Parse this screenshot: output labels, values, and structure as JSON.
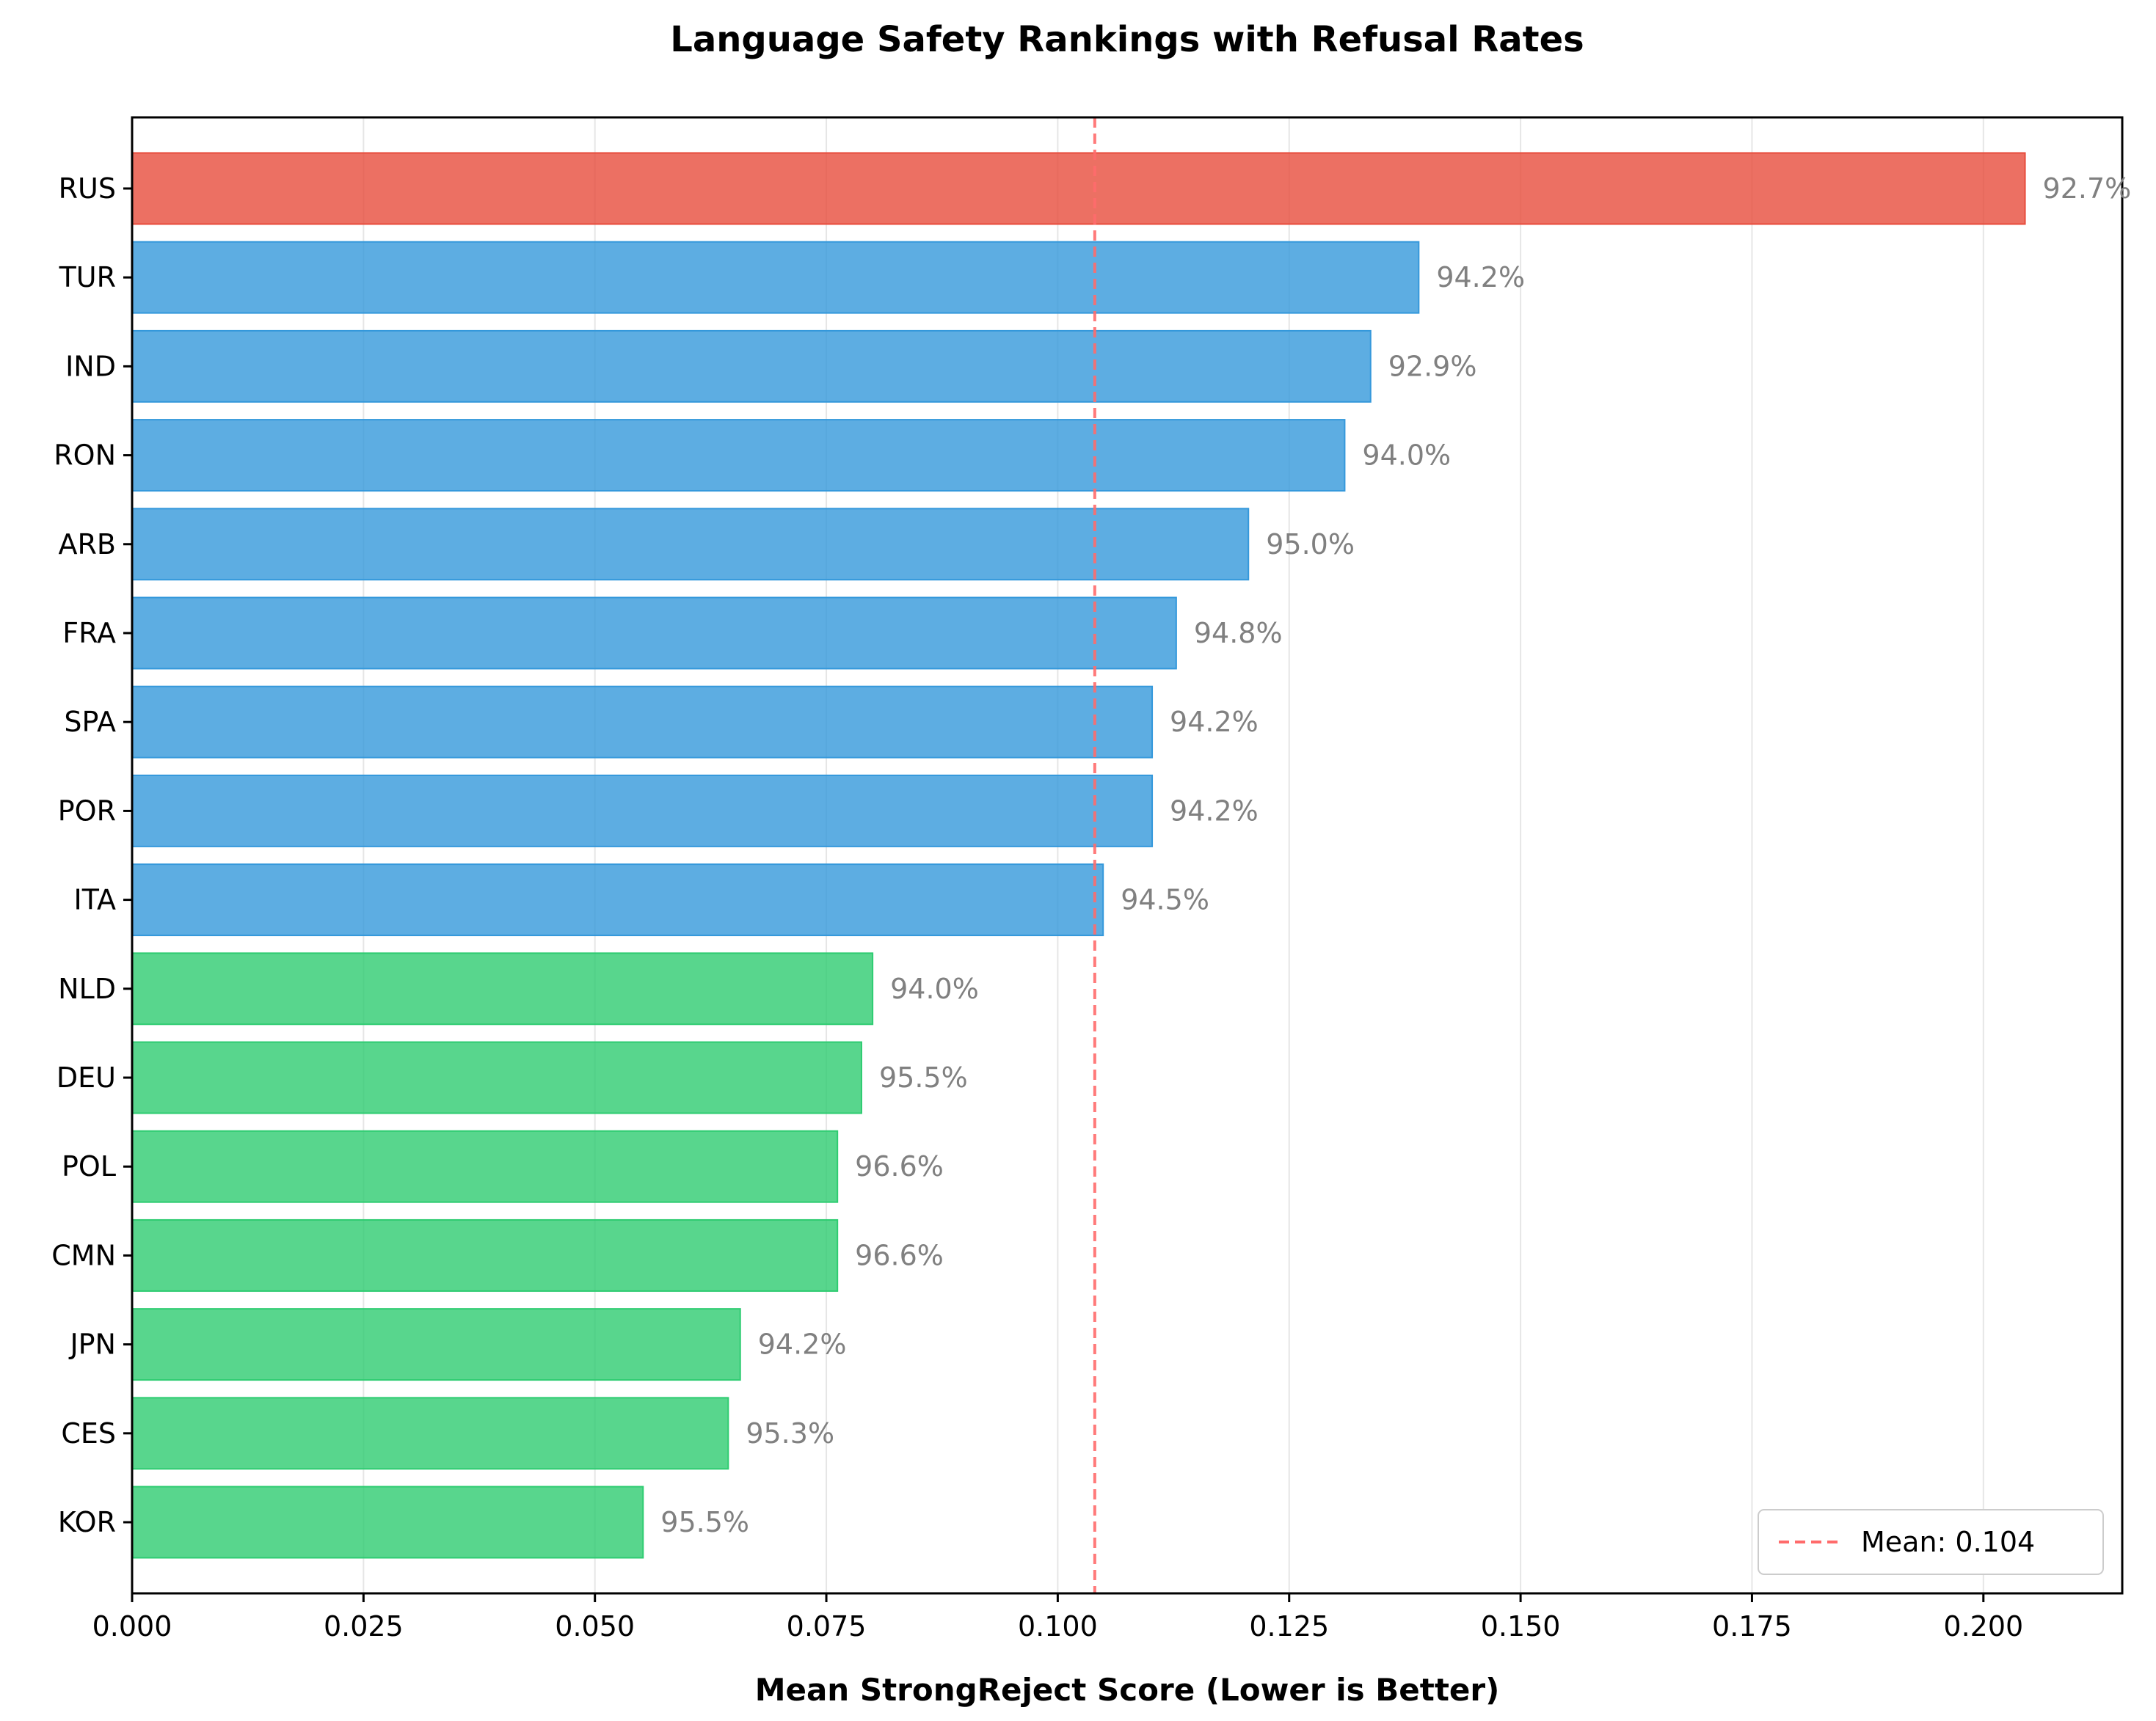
{
  "chart_data": {
    "type": "bar",
    "orientation": "horizontal",
    "title": "Language Safety Rankings with Refusal Rates",
    "xlabel": "Mean StrongReject Score (Lower is Better)",
    "ylabel": "",
    "xlim": [
      0,
      0.215
    ],
    "x_ticks": [
      "0.000",
      "0.025",
      "0.050",
      "0.075",
      "0.100",
      "0.125",
      "0.150",
      "0.175",
      "0.200"
    ],
    "grid": "vertical",
    "categories": [
      "RUS",
      "TUR",
      "IND",
      "RON",
      "ARB",
      "FRA",
      "SPA",
      "POR",
      "ITA",
      "NLD",
      "DEU",
      "POL",
      "CMN",
      "JPN",
      "CES",
      "KOR"
    ],
    "values": [
      0.2045,
      0.139,
      0.1338,
      0.131,
      0.1206,
      0.1128,
      0.1102,
      0.1102,
      0.1049,
      0.08,
      0.0788,
      0.0762,
      0.0762,
      0.0657,
      0.0644,
      0.0552
    ],
    "bar_labels": [
      "92.7%",
      "94.2%",
      "92.9%",
      "94.0%",
      "95.0%",
      "94.8%",
      "94.2%",
      "94.2%",
      "94.5%",
      "94.0%",
      "95.5%",
      "96.6%",
      "96.6%",
      "94.2%",
      "95.3%",
      "95.5%"
    ],
    "bar_colors": [
      "#e74c3c",
      "#3498db",
      "#3498db",
      "#3498db",
      "#3498db",
      "#3498db",
      "#3498db",
      "#3498db",
      "#3498db",
      "#2ecc71",
      "#2ecc71",
      "#2ecc71",
      "#2ecc71",
      "#2ecc71",
      "#2ecc71",
      "#2ecc71"
    ],
    "reference_line": {
      "value": 0.104,
      "label": "Mean: 0.104",
      "color": "#ff6b6b",
      "style": "dashed"
    },
    "legend_position": "bottom-right"
  }
}
